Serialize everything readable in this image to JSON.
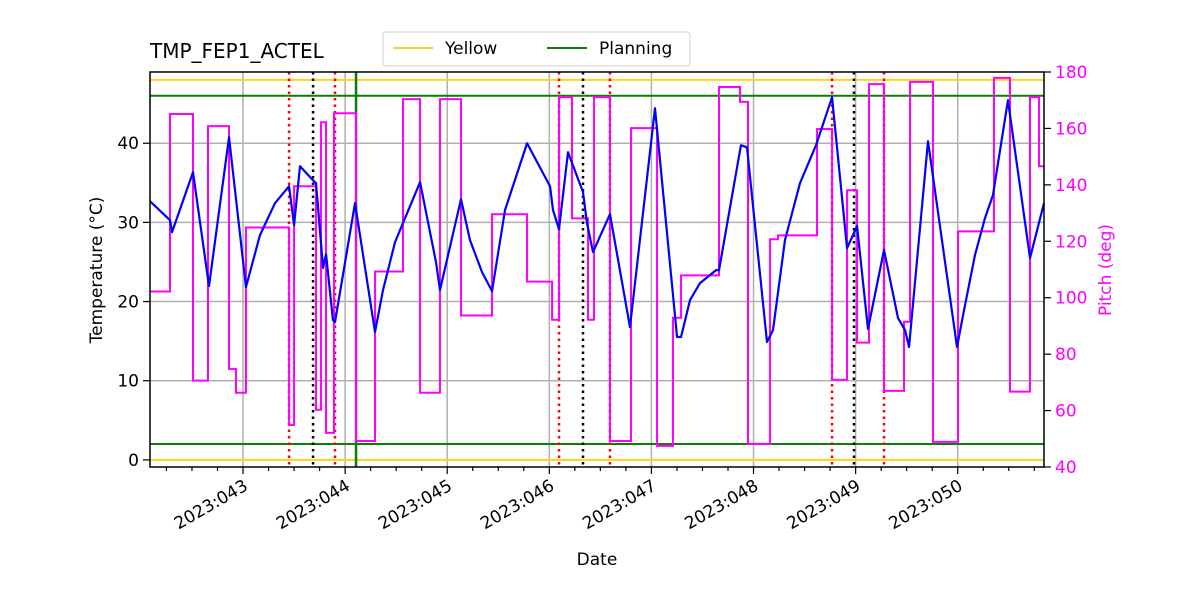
{
  "chart_data": {
    "type": "line",
    "title": "TMP_FEP1_ACTEL",
    "xlabel": "Date",
    "ylabel": "Temperature (°C)",
    "y2label": "Pitch (deg)",
    "xlim": [
      42.089,
      50.845
    ],
    "ylim": [
      -0.9,
      49.0
    ],
    "y2lim": [
      40,
      180
    ],
    "grid": true,
    "legend_placement": "top-center",
    "xticks": [
      {
        "value": 43,
        "label": "2023:043"
      },
      {
        "value": 44,
        "label": "2023:044"
      },
      {
        "value": 45,
        "label": "2023:045"
      },
      {
        "value": 46,
        "label": "2023:046"
      },
      {
        "value": 47,
        "label": "2023:047"
      },
      {
        "value": 48,
        "label": "2023:048"
      },
      {
        "value": 49,
        "label": "2023:049"
      },
      {
        "value": 50,
        "label": "2023:050"
      }
    ],
    "yticks": [
      0,
      10,
      20,
      30,
      40
    ],
    "y2ticks": [
      40,
      60,
      80,
      100,
      120,
      140,
      160,
      180
    ],
    "colors": {
      "temperature": "#0000ff",
      "pitch": "#ff00ff",
      "yellow": "#ffd21f",
      "planning": "#0a7d0a",
      "red_marker": "#ff0000",
      "black_marker": "#000000",
      "grid": "#b0b0b0"
    },
    "legend": [
      {
        "label": "Yellow",
        "color": "#ffd21f"
      },
      {
        "label": "Planning",
        "color": "#0a7d0a"
      }
    ],
    "limit_lines": [
      {
        "series": "Yellow",
        "values": [
          48,
          0
        ]
      },
      {
        "series": "Planning",
        "values": [
          46,
          2
        ]
      }
    ],
    "vertical_lines": {
      "red_dotted": [
        43.451,
        43.901,
        46.095,
        46.594,
        48.769,
        49.278
      ],
      "black_dotted": [
        43.686,
        46.33,
        48.984
      ],
      "green_solid": [
        44.107
      ]
    },
    "temperature": [
      [
        42.089,
        32.68
      ],
      [
        42.285,
        30.28
      ],
      [
        42.305,
        28.77
      ],
      [
        42.51,
        36.34
      ],
      [
        42.667,
        21.96
      ],
      [
        42.863,
        40.76
      ],
      [
        43.029,
        21.83
      ],
      [
        43.166,
        28.39
      ],
      [
        43.313,
        32.43
      ],
      [
        43.451,
        34.57
      ],
      [
        43.5,
        29.65
      ],
      [
        43.558,
        37.1
      ],
      [
        43.686,
        35.33
      ],
      [
        43.715,
        34.95
      ],
      [
        43.784,
        24.23
      ],
      [
        43.813,
        25.99
      ],
      [
        43.881,
        17.67
      ],
      [
        43.901,
        17.41
      ],
      [
        44.097,
        32.43
      ],
      [
        44.293,
        16.15
      ],
      [
        44.371,
        21.45
      ],
      [
        44.489,
        27.51
      ],
      [
        44.734,
        35.08
      ],
      [
        44.89,
        24.98
      ],
      [
        44.929,
        21.45
      ],
      [
        45.135,
        32.93
      ],
      [
        45.223,
        27.76
      ],
      [
        45.341,
        23.72
      ],
      [
        45.439,
        21.32
      ],
      [
        45.566,
        31.55
      ],
      [
        45.782,
        40.0
      ],
      [
        46.007,
        34.57
      ],
      [
        46.036,
        31.55
      ],
      [
        46.095,
        29.15
      ],
      [
        46.183,
        38.86
      ],
      [
        46.33,
        33.82
      ],
      [
        46.369,
        29.91
      ],
      [
        46.428,
        26.25
      ],
      [
        46.594,
        31.04
      ],
      [
        46.79,
        16.78
      ],
      [
        47.035,
        44.42
      ],
      [
        47.251,
        15.52
      ],
      [
        47.29,
        15.52
      ],
      [
        47.378,
        20.19
      ],
      [
        47.476,
        22.33
      ],
      [
        47.633,
        23.97
      ],
      [
        47.662,
        23.97
      ],
      [
        47.877,
        39.75
      ],
      [
        47.936,
        39.49
      ],
      [
        48.132,
        14.89
      ],
      [
        48.191,
        16.4
      ],
      [
        48.308,
        27.76
      ],
      [
        48.455,
        34.95
      ],
      [
        48.612,
        39.75
      ],
      [
        48.769,
        45.8
      ],
      [
        48.916,
        26.75
      ],
      [
        49.014,
        29.53
      ],
      [
        49.121,
        16.53
      ],
      [
        49.278,
        26.5
      ],
      [
        49.415,
        17.92
      ],
      [
        49.484,
        16.4
      ],
      [
        49.523,
        14.26
      ],
      [
        49.709,
        40.25
      ],
      [
        49.993,
        14.26
      ],
      [
        50.062,
        18.93
      ],
      [
        50.169,
        25.87
      ],
      [
        50.267,
        30.54
      ],
      [
        50.345,
        33.44
      ],
      [
        50.492,
        45.43
      ],
      [
        50.708,
        25.49
      ],
      [
        50.845,
        32.43
      ]
    ],
    "pitch_steps": [
      [
        42.089,
        102.2
      ],
      [
        42.285,
        165.1
      ],
      [
        42.51,
        70.6
      ],
      [
        42.657,
        160.8
      ],
      [
        42.863,
        74.8
      ],
      [
        42.931,
        66.3
      ],
      [
        43.029,
        124.9
      ],
      [
        43.451,
        54.9
      ],
      [
        43.5,
        139.5
      ],
      [
        43.715,
        60.3
      ],
      [
        43.764,
        162.2
      ],
      [
        43.813,
        52.1
      ],
      [
        43.891,
        165.4
      ],
      [
        44.107,
        49.2
      ],
      [
        44.293,
        109.3
      ],
      [
        44.567,
        170.4
      ],
      [
        44.734,
        66.3
      ],
      [
        44.929,
        170.4
      ],
      [
        45.135,
        93.7
      ],
      [
        45.439,
        129.6
      ],
      [
        45.782,
        105.7
      ],
      [
        46.027,
        92.2
      ],
      [
        46.095,
        171.1
      ],
      [
        46.222,
        128.1
      ],
      [
        46.379,
        92.2
      ],
      [
        46.438,
        171.1
      ],
      [
        46.594,
        49.2
      ],
      [
        46.8,
        160.1
      ],
      [
        47.055,
        47.5
      ],
      [
        47.211,
        92.9
      ],
      [
        47.29,
        107.9
      ],
      [
        47.662,
        174.7
      ],
      [
        47.868,
        169.4
      ],
      [
        47.946,
        48.2
      ],
      [
        48.162,
        120.7
      ],
      [
        48.24,
        122.1
      ],
      [
        48.622,
        159.8
      ],
      [
        48.769,
        70.9
      ],
      [
        48.916,
        138.1
      ],
      [
        49.014,
        84.1
      ],
      [
        49.131,
        175.7
      ],
      [
        49.278,
        67.0
      ],
      [
        49.474,
        91.5
      ],
      [
        49.533,
        176.5
      ],
      [
        49.758,
        48.9
      ],
      [
        50.003,
        123.5
      ],
      [
        50.355,
        177.9
      ],
      [
        50.512,
        66.7
      ],
      [
        50.708,
        171.1
      ],
      [
        50.796,
        146.6
      ],
      [
        50.845,
        146.6
      ]
    ]
  }
}
